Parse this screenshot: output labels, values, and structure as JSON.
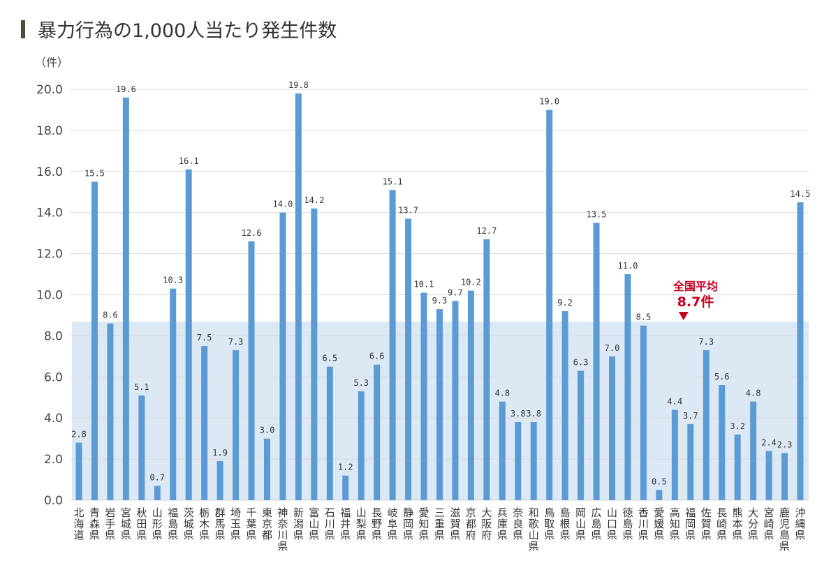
{
  "chart_data": {
    "type": "bar",
    "title": "暴力行為の1,000人当たり発生件数",
    "ylabel": "（件）",
    "ylim": [
      0,
      20
    ],
    "yticks": [
      "0.0",
      "2.0",
      "4.0",
      "6.0",
      "8.0",
      "10.0",
      "12.0",
      "14.0",
      "16.0",
      "18.0",
      "20.0"
    ],
    "grid": true,
    "categories": [
      "北海道",
      "青森県",
      "岩手県",
      "宮城県",
      "秋田県",
      "山形県",
      "福島県",
      "茨城県",
      "栃木県",
      "群馬県",
      "埼玉県",
      "千葉県",
      "東京都",
      "神奈川県",
      "新潟県",
      "富山県",
      "石川県",
      "福井県",
      "山梨県",
      "長野県",
      "岐阜県",
      "静岡県",
      "愛知県",
      "三重県",
      "滋賀県",
      "京都府",
      "大阪府",
      "兵庫県",
      "奈良県",
      "和歌山県",
      "鳥取県",
      "島根県",
      "岡山県",
      "広島県",
      "山口県",
      "徳島県",
      "香川県",
      "愛媛県",
      "高知県",
      "福岡県",
      "佐賀県",
      "長崎県",
      "熊本県",
      "大分県",
      "宮崎県",
      "鹿児島県",
      "沖縄県"
    ],
    "values": [
      2.8,
      15.5,
      8.6,
      19.6,
      5.1,
      0.7,
      10.3,
      16.1,
      7.5,
      1.9,
      7.3,
      12.6,
      3.0,
      14.0,
      19.8,
      14.2,
      6.5,
      1.2,
      5.3,
      6.6,
      15.1,
      13.7,
      10.1,
      9.3,
      9.7,
      10.2,
      12.7,
      4.8,
      3.8,
      3.8,
      19.0,
      9.2,
      6.3,
      13.5,
      7.0,
      11.0,
      8.5,
      0.5,
      4.4,
      3.7,
      7.3,
      5.6,
      3.2,
      4.8,
      2.4,
      2.3,
      14.5
    ],
    "average": {
      "label": "全国平均",
      "value": 8.7,
      "value_label": "8.7件"
    },
    "colors": {
      "bar": "#5b9bd5",
      "average_band": "#dce8f4",
      "average_text": "#c8001e",
      "grid": "#d9d9d9"
    }
  }
}
